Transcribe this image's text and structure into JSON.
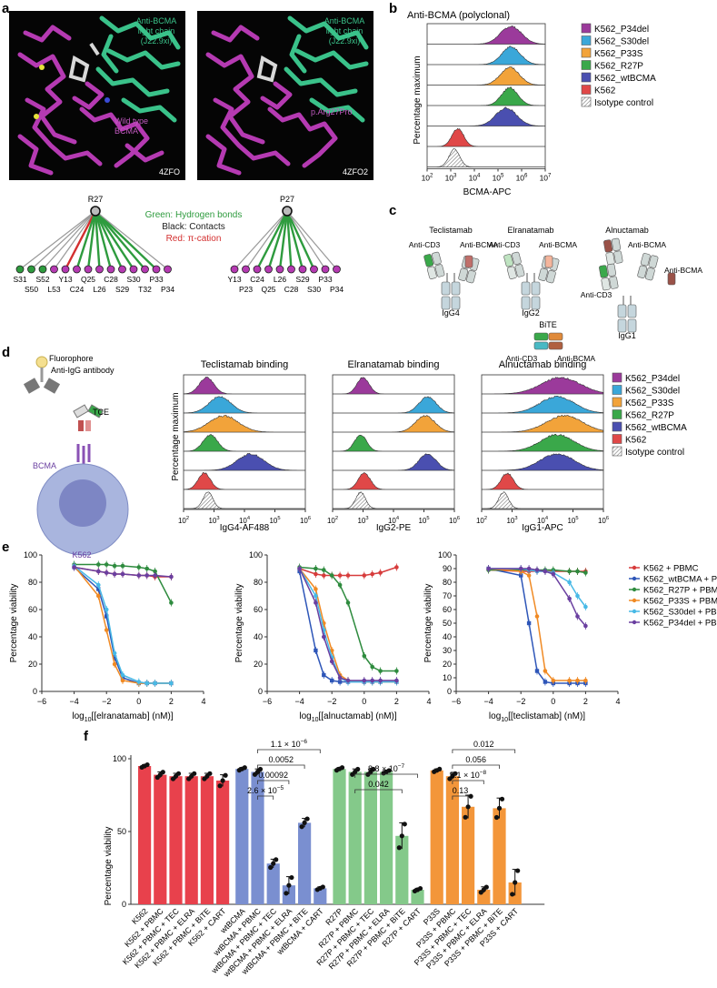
{
  "panels": {
    "a": {
      "label": "a",
      "structures": [
        {
          "chain_label_1": "Anti-BCMA",
          "chain_label_2": "light chain",
          "chain_label_3": "(J22.9xi)",
          "variant_1": "Wild type",
          "variant_2": "BCMA",
          "pdb": "4ZFO"
        },
        {
          "chain_label_1": "Anti-BCMA",
          "chain_label_2": "light chain",
          "chain_label_3": "(J22.9xi)",
          "variant_1": "p.Arg27Pro",
          "variant_2": "",
          "pdb": "4ZFO2"
        }
      ],
      "legend": {
        "green": "Green: Hydrogen bonds",
        "black": "Black: Contacts",
        "red": "Red: π-cation"
      },
      "network_left": {
        "hub": "R27",
        "residues_top": [
          "S31",
          "S52",
          "Y13",
          "Q25",
          "C28",
          "S30",
          "P33"
        ],
        "residues_bottom": [
          "S50",
          "L53",
          "C24",
          "L26",
          "S29",
          "T32",
          "P34"
        ]
      },
      "network_right": {
        "hub": "P27",
        "residues_top": [
          "Y13",
          "C24",
          "L26",
          "S29",
          "P33"
        ],
        "residues_bottom": [
          "P23",
          "Q25",
          "C28",
          "S30",
          "P34"
        ]
      }
    },
    "b": {
      "label": "b",
      "title": "Anti-BCMA (polyclonal)",
      "ylabel": "Percentage maximum",
      "xlabel": "BCMA-APC",
      "xticks": [
        "10",
        "10",
        "10",
        "10",
        "10",
        "10"
      ],
      "xexp": [
        "2",
        "3",
        "4",
        "5",
        "6",
        "7"
      ],
      "legend": [
        "K562_P34del",
        "K562_S30del",
        "K562_P33S",
        "K562_R27P",
        "K562_wtBCMA",
        "K562",
        "Isotype control"
      ]
    },
    "c": {
      "label": "c",
      "antibodies": {
        "tec": {
          "name": "Teclistamab",
          "left": "Anti-CD3",
          "right": "Anti-BCMA",
          "isotype": "IgG4"
        },
        "elra": {
          "name": "Elranatamab",
          "left": "Anti-CD3",
          "right": "Anti-BCMA",
          "isotype": "IgG2"
        },
        "alnu": {
          "name": "Alnuctamab",
          "left": "Anti-CD3",
          "right1": "Anti-BCMA",
          "right2": "Anti-BCMA",
          "isotype": "IgG1"
        },
        "bite": {
          "name": "BiTE",
          "left": "Anti-CD3",
          "right": "Anti-BCMA"
        }
      }
    },
    "d": {
      "label": "d",
      "schematic": {
        "fluor": "Fluorophore",
        "antibody": "Anti-IgG antibody",
        "tce": "TCE",
        "bcma": "BCMA",
        "cell": "K562"
      },
      "ylabel": "Percentage maximum",
      "subpanels": [
        {
          "title": "Teclistamab binding",
          "xlabel": "IgG4-AF488"
        },
        {
          "title": "Elranatamab binding",
          "xlabel": "IgG2-PE"
        },
        {
          "title": "Alnuctamab binding",
          "xlabel": "IgG1-APC"
        }
      ],
      "legend": [
        "K562_P34del",
        "K562_S30del",
        "K562_P33S",
        "K562_R27P",
        "K562_wtBCMA",
        "K562",
        "Isotype control"
      ]
    },
    "e": {
      "label": "e",
      "ylabel": "Percentage viability",
      "plots": [
        {
          "xlabel_pre": "log",
          "xlabel_sub": "10",
          "xlabel_post": "[[elranatamab] (nM)]"
        },
        {
          "xlabel_pre": "log",
          "xlabel_sub": "10",
          "xlabel_post": "[[alnuctamab] (nM)]"
        },
        {
          "xlabel_pre": "log",
          "xlabel_sub": "10",
          "xlabel_post": "[[teclistamab] (nM)]"
        }
      ],
      "legend": [
        "K562 + PBMC",
        "K562_wtBCMA + PBMC",
        "K562_R27P + PBMC",
        "K562_P33S + PBMC",
        "K562_S30del + PBMC",
        "K562_P34del + PBMC"
      ]
    },
    "f": {
      "label": "f",
      "ylabel": "Percentage viability",
      "pvalues": {
        "p1": "1.1 × 10",
        "p1e": "−6",
        "p2": "0.0052",
        "p3": "0.00092",
        "p4": "2.6 × 10",
        "p4e": "−5",
        "p5": "8.8 × 10",
        "p5e": "−7",
        "p6": "0.042",
        "p7": "0.012",
        "p8": "0.056",
        "p9": "5.1 × 10",
        "p9e": "−8",
        "p10": "0.13"
      }
    }
  },
  "chart_data": [
    {
      "id": "e1",
      "type": "line",
      "title": "",
      "xlabel": "log10[[elranatamab] (nM)]",
      "ylabel": "Percentage viability",
      "xlim": [
        -6,
        4
      ],
      "ylim": [
        0,
        100
      ],
      "xticks": [
        -6,
        -4,
        -2,
        0,
        2,
        4
      ],
      "yticks": [
        0,
        20,
        40,
        60,
        80,
        100
      ],
      "x": [
        -4,
        -2.5,
        -2,
        -1.5,
        -1,
        0,
        0.5,
        1,
        2
      ],
      "series": [
        {
          "name": "K562 + PBMC",
          "color": "#d73c3c",
          "values": [
            91,
            88,
            87,
            86,
            86,
            85,
            85,
            84,
            84
          ]
        },
        {
          "name": "K562_wtBCMA + PBMC",
          "color": "#2e56b8",
          "values": [
            91,
            75,
            55,
            25,
            10,
            6,
            6,
            6,
            6
          ]
        },
        {
          "name": "K562_R27P + PBMC",
          "color": "#2e8b3e",
          "values": [
            93,
            93,
            93,
            92,
            92,
            91,
            90,
            88,
            65
          ]
        },
        {
          "name": "K562_P33S + PBMC",
          "color": "#f08a24",
          "values": [
            92,
            70,
            45,
            20,
            8,
            6,
            6,
            6,
            6
          ]
        },
        {
          "name": "K562_S30del + PBMC",
          "color": "#48b9e6",
          "values": [
            92,
            78,
            60,
            28,
            12,
            7,
            6,
            6,
            6
          ]
        },
        {
          "name": "K562_P34del + PBMC",
          "color": "#6a3fa0",
          "values": [
            91,
            88,
            87,
            86,
            86,
            85,
            85,
            85,
            84
          ]
        }
      ]
    },
    {
      "id": "e2",
      "type": "line",
      "title": "",
      "xlabel": "log10[[alnuctamab] (nM)]",
      "ylabel": "Percentage viability",
      "xlim": [
        -6,
        4
      ],
      "ylim": [
        0,
        100
      ],
      "xticks": [
        -6,
        -4,
        -2,
        0,
        2,
        4
      ],
      "yticks": [
        0,
        20,
        40,
        60,
        80,
        100
      ],
      "x": [
        -4,
        -3,
        -2.5,
        -2,
        -1.5,
        -1,
        0,
        0.5,
        1,
        2
      ],
      "series": [
        {
          "name": "K562 + PBMC",
          "color": "#d73c3c",
          "values": [
            90,
            86,
            85,
            85,
            85,
            85,
            85,
            86,
            87,
            91
          ]
        },
        {
          "name": "K562_wtBCMA + PBMC",
          "color": "#2e56b8",
          "values": [
            88,
            30,
            12,
            8,
            7,
            7,
            7,
            7,
            7,
            7
          ]
        },
        {
          "name": "K562_R27P + PBMC",
          "color": "#2e8b3e",
          "values": [
            91,
            90,
            89,
            85,
            78,
            65,
            26,
            18,
            15,
            15
          ]
        },
        {
          "name": "K562_P33S + PBMC",
          "color": "#f08a24",
          "values": [
            90,
            75,
            50,
            30,
            12,
            8,
            7,
            7,
            7,
            7
          ]
        },
        {
          "name": "K562_S30del + PBMC",
          "color": "#48b9e6",
          "values": [
            90,
            70,
            45,
            25,
            10,
            7,
            7,
            7,
            7,
            7
          ]
        },
        {
          "name": "K562_P34del + PBMC",
          "color": "#6a3fa0",
          "values": [
            90,
            65,
            40,
            22,
            10,
            8,
            8,
            8,
            8,
            8
          ]
        }
      ]
    },
    {
      "id": "e3",
      "type": "line",
      "title": "",
      "xlabel": "log10[[teclistamab] (nM)]",
      "ylabel": "Percentage viability",
      "xlim": [
        -6,
        4
      ],
      "ylim": [
        0,
        100
      ],
      "xticks": [
        -6,
        -4,
        -2,
        0,
        2,
        4
      ],
      "yticks": [
        0,
        10,
        20,
        30,
        40,
        50,
        60,
        70,
        80,
        90,
        100
      ],
      "x": [
        -4,
        -2,
        -1.5,
        -1,
        -0.5,
        0,
        1,
        1.5,
        2
      ],
      "series": [
        {
          "name": "K562 + PBMC",
          "color": "#d73c3c",
          "values": [
            89,
            88,
            88,
            88,
            88,
            88,
            88,
            88,
            88
          ]
        },
        {
          "name": "K562_wtBCMA + PBMC",
          "color": "#2e56b8",
          "values": [
            90,
            85,
            50,
            15,
            7,
            6,
            6,
            6,
            6
          ]
        },
        {
          "name": "K562_R27P + PBMC",
          "color": "#2e8b3e",
          "values": [
            89,
            89,
            89,
            89,
            89,
            89,
            88,
            88,
            87
          ]
        },
        {
          "name": "K562_P33S + PBMC",
          "color": "#f08a24",
          "values": [
            90,
            88,
            85,
            55,
            15,
            8,
            8,
            8,
            8
          ]
        },
        {
          "name": "K562_S30del + PBMC",
          "color": "#48b9e6",
          "values": [
            90,
            90,
            89,
            88,
            88,
            87,
            80,
            70,
            62
          ]
        },
        {
          "name": "K562_P34del + PBMC",
          "color": "#6a3fa0",
          "values": [
            90,
            90,
            90,
            89,
            88,
            86,
            68,
            55,
            48
          ]
        }
      ]
    },
    {
      "id": "f",
      "type": "bar",
      "title": "",
      "xlabel": "",
      "ylabel": "Percentage viability",
      "ylim": [
        0,
        100
      ],
      "yticks": [
        0,
        50,
        100
      ],
      "categories": [
        "K562",
        "K562 + PBMC",
        "K562 + PBMC + TEC",
        "K562 + PBMC + ELRA",
        "K562 + PBMC + BiTE",
        "K562 + CART",
        "wtBCMA",
        "wtBCMA + PBMC",
        "wtBCMA + PBMC + TEC",
        "wtBCMA + PBMC + ELRA",
        "wtBCMA + PBMC + BiTE",
        "wtBCMA + CART",
        "R27P",
        "R27P + PBMC",
        "R27P + PBMC + TEC",
        "R27P + PBMC + ELRA",
        "R27P + PBMC + BiTE",
        "R27P + CART",
        "P33S",
        "P33S + PBMC",
        "P33S + PBMC + TEC",
        "P33S + PBMC + ELRA",
        "P33S + PBMC + BiTE",
        "P33S + CART"
      ],
      "values": [
        95,
        89,
        88,
        88,
        88,
        85,
        93,
        91,
        28,
        13,
        56,
        11,
        93,
        91,
        91,
        91,
        47,
        10,
        92,
        88,
        67,
        10,
        66,
        15
      ],
      "errors": [
        1,
        2,
        2,
        2,
        2,
        4,
        1,
        2,
        3,
        6,
        3,
        1,
        1,
        2,
        2,
        1,
        9,
        1,
        1,
        2,
        8,
        2,
        7,
        9
      ],
      "colors": [
        "#e8414c",
        "#e8414c",
        "#e8414c",
        "#e8414c",
        "#e8414c",
        "#e8414c",
        "#7a8fd0",
        "#7a8fd0",
        "#7a8fd0",
        "#7a8fd0",
        "#7a8fd0",
        "#7a8fd0",
        "#84c98a",
        "#84c98a",
        "#84c98a",
        "#84c98a",
        "#84c98a",
        "#84c98a",
        "#f3963a",
        "#f3963a",
        "#f3963a",
        "#f3963a",
        "#f3963a",
        "#f3963a"
      ]
    }
  ]
}
